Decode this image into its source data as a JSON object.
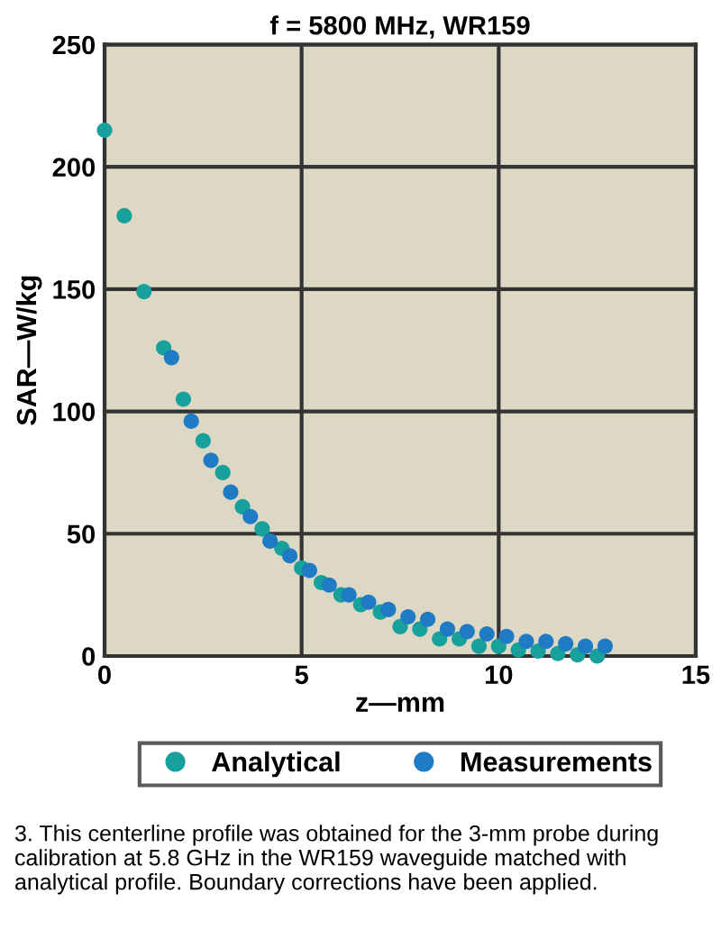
{
  "chart_data": {
    "type": "scatter",
    "title": "f = 5800 MHz, WR159",
    "xlabel": "z—mm",
    "ylabel": "SAR—W/kg",
    "xlim": [
      0,
      15
    ],
    "ylim": [
      0,
      250
    ],
    "xticks": [
      0,
      5,
      10,
      15
    ],
    "yticks": [
      0,
      50,
      100,
      150,
      200,
      250
    ],
    "grid": true,
    "legend": "bottom",
    "marker": "circle",
    "series": [
      {
        "name": "Analytical",
        "color": "#17a09c",
        "x": [
          0,
          0.5,
          1,
          1.5,
          2,
          2.5,
          3,
          3.5,
          4,
          4.5,
          5,
          5.5,
          6,
          6.5,
          7,
          7.5,
          8,
          8.5,
          9,
          9.5,
          10,
          10.5,
          11,
          11.5,
          12,
          12.5
        ],
        "values": [
          215,
          180,
          149,
          126,
          105,
          88,
          75,
          61,
          52,
          44,
          36,
          30,
          25,
          21,
          18,
          12,
          11,
          7,
          7,
          4,
          4,
          2.5,
          2,
          1,
          0.5,
          0
        ]
      },
      {
        "name": "Measurements",
        "color": "#1f7bc4",
        "x": [
          1.7,
          2.2,
          2.7,
          3.2,
          3.7,
          4.2,
          4.7,
          5.2,
          5.7,
          6.2,
          6.7,
          7.2,
          7.7,
          8.2,
          8.7,
          9.2,
          9.7,
          10.2,
          10.7,
          11.2,
          11.7,
          12.2,
          12.7
        ],
        "values": [
          122,
          96,
          80,
          67,
          57,
          47,
          41,
          35,
          29,
          25,
          22,
          19,
          16,
          15,
          11,
          10,
          9,
          8,
          6,
          6,
          5,
          4,
          4
        ]
      }
    ],
    "annotations": [
      "3. This centerline profile was obtained for the 3-mm probe during calibration at 5.8 GHz in the WR159 waveguide matched with analytical profile. Boundary corrections have been applied."
    ]
  }
}
